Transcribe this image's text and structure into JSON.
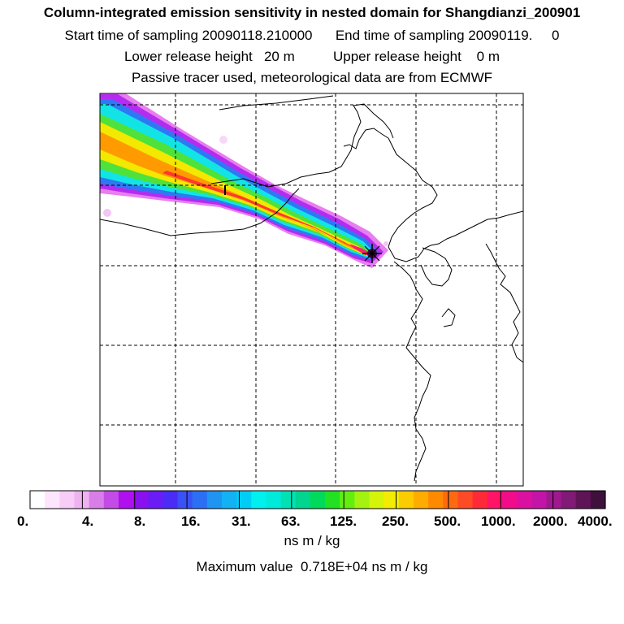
{
  "titles": {
    "line1": "Column-integrated emission sensitivity in nested domain for Shangdianzi_200901",
    "line2": "Start time of sampling 20090118.210000      End time of sampling 20090119.     0",
    "line3": "Lower release height   20 m          Upper release height    0 m",
    "line4": "Passive tracer used, meteorological data are from ECMWF"
  },
  "colorbar": {
    "ticks": [
      "0.",
      "4.",
      "8.",
      "16.",
      "31.",
      "63.",
      "125.",
      "250.",
      "500.",
      "1000.",
      "2000.",
      "4000."
    ],
    "colors": [
      "#ffffff",
      "#fde6fd",
      "#f7cdf7",
      "#efb2f1",
      "#d97ee9",
      "#c44be6",
      "#b010ee",
      "#8a10f0",
      "#6b1cf5",
      "#4a2cf6",
      "#3a52f5",
      "#2b70f4",
      "#1f94f3",
      "#12b2f5",
      "#00cdf5",
      "#00f0f0",
      "#00eadb",
      "#00e2b6",
      "#00d690",
      "#00da5a",
      "#22e022",
      "#64ee10",
      "#a4f210",
      "#d6f40a",
      "#f4ec00",
      "#fbcc00",
      "#ffac00",
      "#ff8a00",
      "#ff6a10",
      "#ff4a26",
      "#ff2a38",
      "#ff1466",
      "#f20c8a",
      "#dc10a0",
      "#c414a8",
      "#a01890",
      "#801a74",
      "#601458",
      "#40103c"
    ],
    "units": "ns m / kg",
    "maximum": "Maximum value  0.718E+04 ns m / kg"
  },
  "map": {
    "receptor": "Shangdianzi",
    "receptor_marker": "+"
  }
}
